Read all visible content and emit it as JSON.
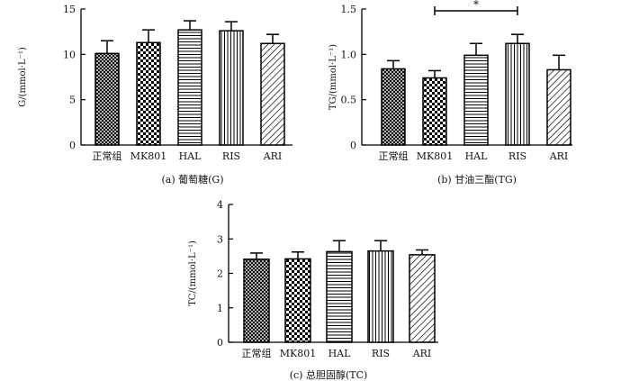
{
  "chart_data": [
    {
      "type": "bar",
      "caption": "(a)  葡萄糖(G)",
      "ylabel": "G/(mmol·L⁻¹)",
      "ylim": [
        0,
        15
      ],
      "yticks": [
        "0",
        "5",
        "10",
        "15"
      ],
      "categories": [
        "正常组",
        "MK801",
        "HAL",
        "RIS",
        "ARI"
      ],
      "values": [
        10.1,
        11.3,
        12.7,
        12.6,
        11.2
      ],
      "errors": [
        1.4,
        1.4,
        1.0,
        1.0,
        1.0
      ],
      "patterns": [
        "crosshatch",
        "checker",
        "horizontal",
        "vertical",
        "diagonal"
      ],
      "significance": []
    },
    {
      "type": "bar",
      "caption": "(b)  甘油三酯(TG)",
      "ylabel": "TG/(mmol·L⁻¹)",
      "ylim": [
        0,
        1.5
      ],
      "yticks": [
        "0",
        "0.5",
        "1.0",
        "1.5"
      ],
      "categories": [
        "正常组",
        "MK801",
        "HAL",
        "RIS",
        "ARI"
      ],
      "values": [
        0.84,
        0.74,
        0.99,
        1.12,
        0.83
      ],
      "errors": [
        0.09,
        0.08,
        0.13,
        0.1,
        0.16
      ],
      "patterns": [
        "crosshatch",
        "checker",
        "horizontal",
        "vertical",
        "diagonal"
      ],
      "significance": [
        {
          "from": 1,
          "to": 3,
          "label": "*",
          "y": 1.48
        }
      ]
    },
    {
      "type": "bar",
      "caption": "(c)  总胆固醇(TC)",
      "ylabel": "TC/(mmol·L⁻¹)",
      "ylim": [
        0,
        4
      ],
      "yticks": [
        "0",
        "1",
        "2",
        "3",
        "4"
      ],
      "categories": [
        "正常组",
        "MK801",
        "HAL",
        "RIS",
        "ARI"
      ],
      "values": [
        2.41,
        2.42,
        2.63,
        2.65,
        2.54
      ],
      "errors": [
        0.18,
        0.2,
        0.32,
        0.3,
        0.14
      ],
      "patterns": [
        "crosshatch",
        "checker",
        "horizontal",
        "vertical",
        "diagonal"
      ],
      "significance": []
    }
  ]
}
